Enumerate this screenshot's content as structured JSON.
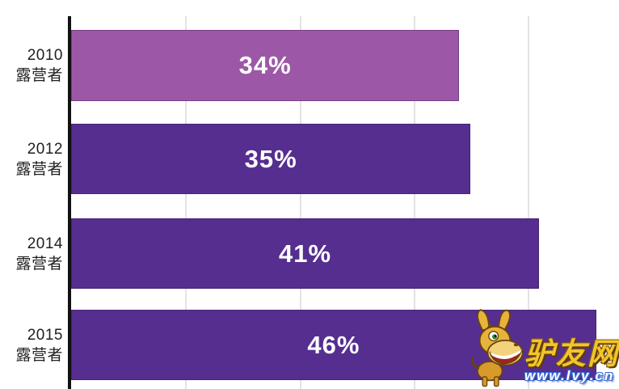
{
  "chart_data": {
    "type": "bar",
    "orientation": "horizontal",
    "title": "",
    "xlabel": "",
    "ylabel": "",
    "xlim": [
      0,
      48
    ],
    "grid": "vertical",
    "gridline_values": [
      10,
      20,
      30,
      40
    ],
    "categories": [
      "2010 露营者",
      "2012 露营者",
      "2014 露营者",
      "2015 露营者"
    ],
    "values": [
      34,
      35,
      41,
      46
    ],
    "bars": [
      {
        "year": "2010",
        "group": "露营者",
        "value": 34,
        "label": "34%",
        "color": "#9c58a6"
      },
      {
        "year": "2012",
        "group": "露营者",
        "value": 35,
        "label": "35%",
        "color": "#552e90"
      },
      {
        "year": "2014",
        "group": "露营者",
        "value": 41,
        "label": "41%",
        "color": "#552e90"
      },
      {
        "year": "2015",
        "group": "露营者",
        "value": 46,
        "label": "46%",
        "color": "#552e90"
      }
    ],
    "colors": {
      "bar_highlight": "#9c58a6",
      "bar_default": "#552e90",
      "axis": "#111111",
      "gridline": "#e3e3e3",
      "value_label": "#ffffff",
      "category_label": "#1f1f1f"
    }
  },
  "watermark": {
    "site_name": "驴友网",
    "site_url": "www.lvy.cn",
    "mascot": "donkey-mascot",
    "name_color": "#f3c42c",
    "url_color": "#ffffff"
  }
}
